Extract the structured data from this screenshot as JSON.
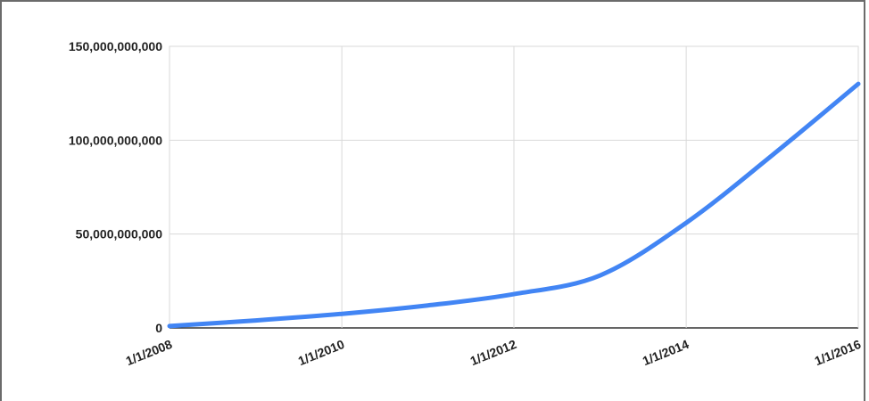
{
  "chart_data": {
    "type": "line",
    "title": "",
    "xlabel": "",
    "ylabel": "",
    "x_ticks": [
      "1/1/2008",
      "1/1/2010",
      "1/1/2012",
      "1/1/2014",
      "1/1/2016"
    ],
    "y_ticks": [
      "0",
      "50,000,000,000",
      "100,000,000,000",
      "150,000,000,000"
    ],
    "ylim": [
      0,
      150000000000
    ],
    "xlim": [
      "2008-01-01",
      "2016-01-01"
    ],
    "grid": true,
    "series": [
      {
        "color": "#4285f4",
        "points": [
          {
            "x": "2008-01-01",
            "y": 1000000000
          },
          {
            "x": "2009-01-01",
            "y": 4000000000
          },
          {
            "x": "2010-01-01",
            "y": 7500000000
          },
          {
            "x": "2011-01-01",
            "y": 12000000000
          },
          {
            "x": "2012-01-01",
            "y": 18000000000
          },
          {
            "x": "2013-01-01",
            "y": 28000000000
          },
          {
            "x": "2014-01-01",
            "y": 56000000000
          },
          {
            "x": "2015-01-01",
            "y": 92000000000
          },
          {
            "x": "2016-01-01",
            "y": 130000000000
          }
        ]
      }
    ]
  }
}
